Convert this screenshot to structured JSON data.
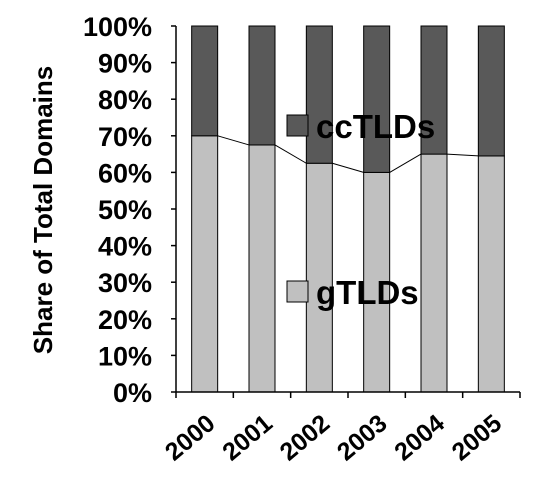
{
  "chart_data": {
    "type": "bar",
    "stacked": true,
    "percent_stacked": true,
    "categories": [
      "2000",
      "2001",
      "2002",
      "2003",
      "2004",
      "2005"
    ],
    "series": [
      {
        "name": "gTLDs",
        "values": [
          70,
          67.5,
          62.5,
          60,
          65,
          64.5
        ],
        "color": "#c0c0c0"
      },
      {
        "name": "ccTLDs",
        "values": [
          30,
          32.5,
          37.5,
          40,
          35,
          35.5
        ],
        "color": "#595959"
      }
    ],
    "title": "",
    "xlabel": "",
    "ylabel": "Share of Total Domains",
    "ylim": [
      0,
      100
    ],
    "yticks": [
      "0%",
      "10%",
      "20%",
      "30%",
      "40%",
      "50%",
      "60%",
      "70%",
      "80%",
      "90%",
      "100%"
    ],
    "grid": false,
    "legend": "inside-plot",
    "connector_line": true
  }
}
